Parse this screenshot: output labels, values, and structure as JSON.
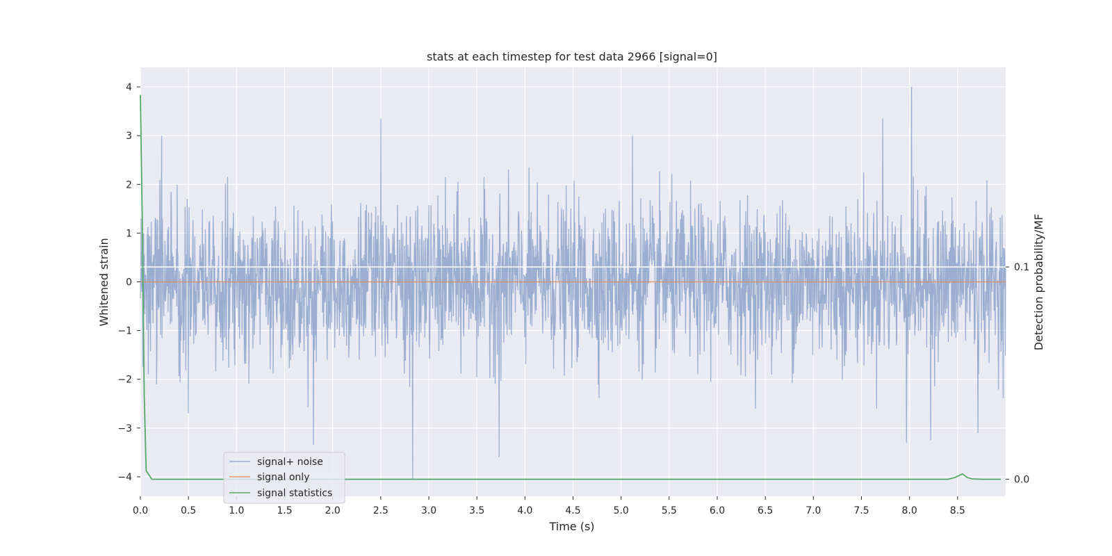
{
  "chart_data": {
    "type": "line",
    "title": "stats at each timestep for test data 2966 [signal=0]",
    "xlabel": "Time (s)",
    "ylabel": "Whitened strain",
    "y2label": "Detection probability/MF",
    "xlim": [
      0.0,
      9.0
    ],
    "ylim": [
      -4.4,
      4.4
    ],
    "y2lim": [
      -0.008,
      0.194
    ],
    "x_ticks": [
      "0.0",
      "0.5",
      "1.0",
      "1.5",
      "2.0",
      "2.5",
      "3.0",
      "3.5",
      "4.0",
      "4.5",
      "5.0",
      "5.5",
      "6.0",
      "6.5",
      "7.0",
      "7.5",
      "8.0",
      "8.5"
    ],
    "y_ticks": [
      "4",
      "3",
      "2",
      "1",
      "0",
      "−1",
      "−2",
      "−3",
      "−4"
    ],
    "y2_ticks": [
      "0.1",
      "0.0"
    ],
    "grid": true,
    "legend_position": "lower-left",
    "noise_envelope": {
      "description_free": true,
      "typical_abs": 1.1,
      "peaks": [
        {
          "x": 0.22,
          "y": 3.0
        },
        {
          "x": 2.5,
          "y": 3.35
        },
        {
          "x": 5.12,
          "y": 3.0
        },
        {
          "x": 7.72,
          "y": 3.35
        },
        {
          "x": 8.02,
          "y": 4.0
        },
        {
          "x": 1.8,
          "y": -3.35
        },
        {
          "x": 2.83,
          "y": -4.05
        },
        {
          "x": 3.73,
          "y": -3.6
        },
        {
          "x": 7.97,
          "y": -3.3
        },
        {
          "x": 8.22,
          "y": -3.25
        },
        {
          "x": 8.71,
          "y": -3.1
        },
        {
          "x": 0.5,
          "y": -2.7
        }
      ]
    },
    "series": [
      {
        "name": "signal+ noise",
        "color": "#4c72b0",
        "axis": "left",
        "style": "dense-noise"
      },
      {
        "name": "signal only",
        "color": "#dd8452",
        "axis": "left",
        "x": [
          0.0,
          9.0
        ],
        "y": [
          0.0,
          0.0
        ]
      },
      {
        "name": "signal statistics",
        "color": "#55a868",
        "axis": "right",
        "x": [
          0.0,
          0.02,
          0.04,
          0.06,
          0.12,
          0.5,
          1.0,
          2.0,
          3.0,
          4.0,
          5.0,
          6.0,
          7.0,
          8.0,
          8.4,
          8.47,
          8.55,
          8.6,
          8.65,
          8.75,
          8.95
        ],
        "y": [
          0.181,
          0.12,
          0.04,
          0.004,
          0.0,
          0.0,
          0.0,
          0.0,
          0.0,
          0.0,
          0.0,
          0.0,
          0.0,
          0.0,
          0.0,
          0.0008,
          0.0025,
          0.0008,
          0.0002,
          0.0,
          0.0
        ]
      }
    ],
    "right_axis_marker": 0.1
  }
}
